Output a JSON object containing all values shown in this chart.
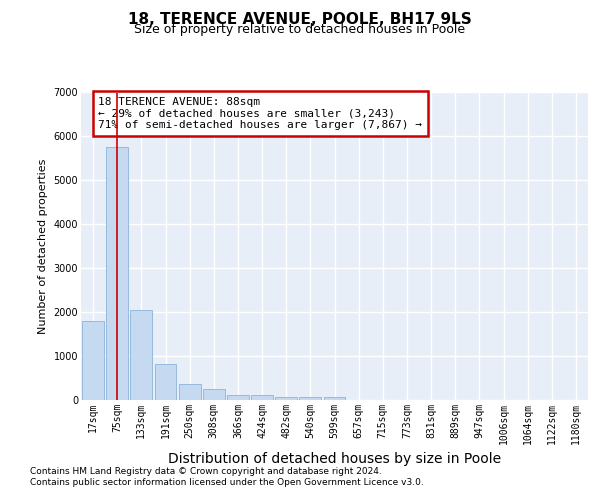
{
  "title": "18, TERENCE AVENUE, POOLE, BH17 9LS",
  "subtitle": "Size of property relative to detached houses in Poole",
  "xlabel": "Distribution of detached houses by size in Poole",
  "ylabel": "Number of detached properties",
  "categories": [
    "17sqm",
    "75sqm",
    "133sqm",
    "191sqm",
    "250sqm",
    "308sqm",
    "366sqm",
    "424sqm",
    "482sqm",
    "540sqm",
    "599sqm",
    "657sqm",
    "715sqm",
    "773sqm",
    "831sqm",
    "889sqm",
    "947sqm",
    "1006sqm",
    "1064sqm",
    "1122sqm",
    "1180sqm"
  ],
  "values": [
    1800,
    5750,
    2050,
    830,
    375,
    240,
    120,
    115,
    75,
    75,
    75,
    0,
    0,
    0,
    0,
    0,
    0,
    0,
    0,
    0,
    0
  ],
  "bar_color": "#c5d9f0",
  "bar_edge_color": "#8ab4d9",
  "annotation_text": "18 TERENCE AVENUE: 88sqm\n← 29% of detached houses are smaller (3,243)\n71% of semi-detached houses are larger (7,867) →",
  "annotation_box_edgecolor": "#cc0000",
  "property_line_color": "#cc0000",
  "ylim": [
    0,
    7000
  ],
  "yticks": [
    0,
    1000,
    2000,
    3000,
    4000,
    5000,
    6000,
    7000
  ],
  "footer_line1": "Contains HM Land Registry data © Crown copyright and database right 2024.",
  "footer_line2": "Contains public sector information licensed under the Open Government Licence v3.0.",
  "plot_bg_color": "#e8eef8",
  "grid_color": "#ffffff",
  "title_fontsize": 11,
  "subtitle_fontsize": 9,
  "xlabel_fontsize": 10,
  "ylabel_fontsize": 8,
  "tick_fontsize": 7,
  "footer_fontsize": 6.5,
  "annotation_fontsize": 8
}
